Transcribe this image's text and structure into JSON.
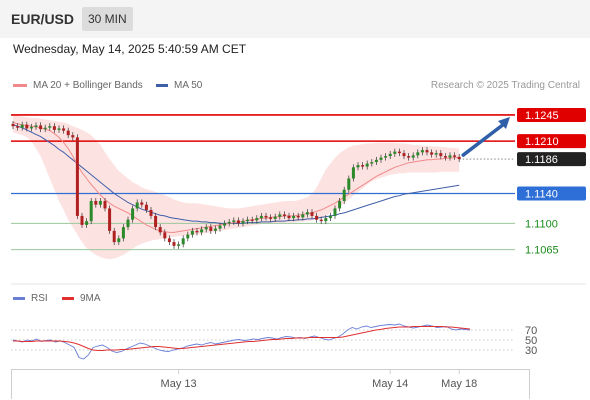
{
  "header": {
    "symbol": "EUR/USD",
    "timeframe": "30 MIN"
  },
  "datetime": "Wednesday, May 14, 2025 5:40:59 AM CET",
  "legend": {
    "ma20_label": "MA 20 + Bollinger Bands",
    "ma50_label": "MA 50",
    "research": "Research © 2025 Trading Central",
    "ma20_color": "#f08a8a",
    "ma50_color": "#3f5fa8"
  },
  "rsi_legend": {
    "rsi_label": "RSI",
    "ma_label": "9MA",
    "rsi_color": "#6a7fd6",
    "ma_color": "#e03030"
  },
  "chart_data": {
    "type": "candlestick",
    "instrument": "EUR/USD",
    "interval": "30 MIN",
    "ylim": [
      1.1035,
      1.1265
    ],
    "x_labels": [
      {
        "label": "May 13",
        "index": 36
      },
      {
        "label": "May 14",
        "index": 82
      },
      {
        "label": "May 18",
        "index": 97
      }
    ],
    "levels": [
      {
        "value": 1.1245,
        "label": "1.1245",
        "kind": "resistance"
      },
      {
        "value": 1.121,
        "label": "1.1210",
        "kind": "resistance"
      },
      {
        "value": 1.1186,
        "label": "1.1186",
        "kind": "last"
      },
      {
        "value": 1.114,
        "label": "1.1140",
        "kind": "pivot"
      },
      {
        "value": 1.11,
        "label": "1.1100",
        "kind": "support"
      },
      {
        "value": 1.1065,
        "label": "1.1065",
        "kind": "support"
      }
    ],
    "close": [
      1.123,
      1.1228,
      1.1232,
      1.1227,
      1.1229,
      1.1231,
      1.1226,
      1.1228,
      1.123,
      1.1225,
      1.1227,
      1.1224,
      1.1218,
      1.1215,
      1.111,
      1.1098,
      1.1103,
      1.113,
      1.1125,
      1.113,
      1.112,
      1.109,
      1.1075,
      1.108,
      1.1095,
      1.1105,
      1.112,
      1.1128,
      1.1125,
      1.1118,
      1.111,
      1.1095,
      1.1088,
      1.108,
      1.1075,
      1.107,
      1.1072,
      1.108,
      1.1085,
      1.109,
      1.1088,
      1.1092,
      1.1095,
      1.109,
      1.1093,
      1.1097,
      1.11,
      1.1102,
      1.1104,
      1.11,
      1.1103,
      1.1105,
      1.1104,
      1.1107,
      1.111,
      1.1108,
      1.1106,
      1.1109,
      1.1112,
      1.111,
      1.1107,
      1.111,
      1.1108,
      1.1112,
      1.1115,
      1.111,
      1.1105,
      1.1103,
      1.1107,
      1.111,
      1.112,
      1.113,
      1.1145,
      1.116,
      1.1175,
      1.1178,
      1.1176,
      1.118,
      1.1182,
      1.1185,
      1.1188,
      1.119,
      1.1193,
      1.1196,
      1.1194,
      1.119,
      1.1188,
      1.1191,
      1.1195,
      1.1198,
      1.1195,
      1.1192,
      1.1194,
      1.119,
      1.1188,
      1.1191,
      1.1189,
      1.1186
    ],
    "ma20": [
      1.1235,
      1.1233,
      1.1232,
      1.1231,
      1.123,
      1.1229,
      1.1228,
      1.1226,
      1.1224,
      1.122,
      1.1215,
      1.1208,
      1.12,
      1.119,
      1.1178,
      1.1168,
      1.116,
      1.1152,
      1.1145,
      1.1138,
      1.1132,
      1.1127,
      1.1123,
      1.112,
      1.1117,
      1.1114,
      1.111,
      1.1106,
      1.1102,
      1.1098,
      1.1095,
      1.1092,
      1.109,
      1.1089,
      1.1088,
      1.1088,
      1.1089,
      1.109,
      1.1091,
      1.1092,
      1.1093,
      1.1094,
      1.1095,
      1.1096,
      1.1097,
      1.1098,
      1.1099,
      1.11,
      1.1101,
      1.1102,
      1.1103,
      1.1104,
      1.1105,
      1.1106,
      1.1107,
      1.1107,
      1.1108,
      1.1109,
      1.1109,
      1.111,
      1.111,
      1.111,
      1.1111,
      1.1112,
      1.1113,
      1.1114,
      1.1116,
      1.1118,
      1.1121,
      1.1124,
      1.1127,
      1.1131,
      1.1135,
      1.1139,
      1.1143,
      1.1147,
      1.1151,
      1.1155,
      1.1159,
      1.1163,
      1.1166,
      1.1169,
      1.1172,
      1.1175,
      1.1177,
      1.1179,
      1.1181,
      1.1182,
      1.1183,
      1.1184,
      1.1185,
      1.1185,
      1.1186,
      1.1186,
      1.1187,
      1.1187,
      1.1188,
      1.1188
    ],
    "bb_upper": [
      1.1245,
      1.1244,
      1.1243,
      1.1242,
      1.1241,
      1.1241,
      1.124,
      1.1239,
      1.1238,
      1.1237,
      1.1236,
      1.1235,
      1.1233,
      1.123,
      1.1228,
      1.1225,
      1.1222,
      1.1218,
      1.1212,
      1.1205,
      1.1195,
      1.1186,
      1.1178,
      1.117,
      1.1165,
      1.116,
      1.1155,
      1.1152,
      1.1148,
      1.1146,
      1.1144,
      1.1142,
      1.114,
      1.1138,
      1.1135,
      1.1132,
      1.113,
      1.1128,
      1.1127,
      1.1127,
      1.1127,
      1.1126,
      1.1125,
      1.1124,
      1.1123,
      1.1122,
      1.1121,
      1.112,
      1.112,
      1.112,
      1.1121,
      1.1122,
      1.1123,
      1.1124,
      1.1125,
      1.1126,
      1.1127,
      1.1128,
      1.1129,
      1.113,
      1.113,
      1.113,
      1.1131,
      1.1133,
      1.1135,
      1.114,
      1.1148,
      1.116,
      1.1172,
      1.118,
      1.1188,
      1.1194,
      1.1198,
      1.1202,
      1.1204,
      1.1205,
      1.1206,
      1.1207,
      1.1207,
      1.1208,
      1.1208,
      1.1208,
      1.1208,
      1.1208,
      1.1207,
      1.1207,
      1.1206,
      1.1205,
      1.1205,
      1.1204,
      1.1204,
      1.1203,
      1.1203,
      1.1202,
      1.1202,
      1.1201,
      1.1201,
      1.12
    ],
    "bb_lower": [
      1.1222,
      1.122,
      1.1218,
      1.1215,
      1.121,
      1.12,
      1.119,
      1.1175,
      1.116,
      1.1145,
      1.113,
      1.1118,
      1.1105,
      1.1095,
      1.1085,
      1.1075,
      1.1067,
      1.1062,
      1.1058,
      1.1055,
      1.1053,
      1.1052,
      1.1053,
      1.1055,
      1.1058,
      1.1062,
      1.1066,
      1.107,
      1.1073,
      1.1075,
      1.1077,
      1.1078,
      1.1079,
      1.108,
      1.1081,
      1.1082,
      1.1083,
      1.1083,
      1.1084,
      1.1084,
      1.1085,
      1.1086,
      1.1087,
      1.1088,
      1.1089,
      1.109,
      1.1091,
      1.1092,
      1.1093,
      1.1094,
      1.1095,
      1.1096,
      1.1097,
      1.1098,
      1.1099,
      1.1099,
      1.11,
      1.11,
      1.11,
      1.1101,
      1.1101,
      1.1101,
      1.1102,
      1.1102,
      1.1103,
      1.1104,
      1.1105,
      1.1107,
      1.111,
      1.1114,
      1.1118,
      1.1122,
      1.1127,
      1.1132,
      1.1137,
      1.1142,
      1.1147,
      1.1152,
      1.1156,
      1.1159,
      1.1161,
      1.1163,
      1.1165,
      1.1166,
      1.1167,
      1.1167,
      1.1168,
      1.1168,
      1.1168,
      1.1168,
      1.1168,
      1.1168,
      1.1168,
      1.1169,
      1.1169,
      1.1169,
      1.1169,
      1.1169
    ],
    "ma50": [
      1.1232,
      1.123,
      1.1228,
      1.1225,
      1.1222,
      1.1219,
      1.1216,
      1.1212,
      1.1208,
      1.1204,
      1.1199,
      1.1195,
      1.119,
      1.1185,
      1.118,
      1.1175,
      1.117,
      1.1165,
      1.116,
      1.1155,
      1.115,
      1.1145,
      1.114,
      1.1136,
      1.1132,
      1.1128,
      1.1125,
      1.1122,
      1.1119,
      1.1117,
      1.1115,
      1.1113,
      1.1111,
      1.111,
      1.1108,
      1.1107,
      1.1106,
      1.1105,
      1.1104,
      1.1103,
      1.1103,
      1.1102,
      1.1102,
      1.1101,
      1.1101,
      1.11,
      1.11,
      1.11,
      1.11,
      1.11,
      1.11,
      1.1101,
      1.1101,
      1.1101,
      1.1102,
      1.1102,
      1.1102,
      1.1103,
      1.1103,
      1.1103,
      1.1104,
      1.1104,
      1.1105,
      1.1105,
      1.1106,
      1.1106,
      1.1107,
      1.1108,
      1.1109,
      1.111,
      1.1111,
      1.1113,
      1.1114,
      1.1116,
      1.1118,
      1.112,
      1.1122,
      1.1124,
      1.1126,
      1.1128,
      1.113,
      1.1132,
      1.1134,
      1.1136,
      1.1137,
      1.1139,
      1.114,
      1.1141,
      1.1142,
      1.1143,
      1.1144,
      1.1145,
      1.1146,
      1.1147,
      1.1148,
      1.1149,
      1.115,
      1.1151
    ],
    "forecast_target": 1.1245,
    "rsi": {
      "levels": [
        70,
        50,
        30
      ],
      "ylim": [
        0,
        100
      ],
      "rsi": [
        50,
        48,
        46,
        50,
        48,
        52,
        47,
        49,
        50,
        46,
        48,
        45,
        40,
        35,
        15,
        12,
        20,
        35,
        38,
        40,
        35,
        28,
        25,
        27,
        32,
        36,
        40,
        44,
        42,
        38,
        34,
        30,
        28,
        27,
        30,
        32,
        34,
        38,
        40,
        42,
        40,
        43,
        45,
        42,
        44,
        46,
        48,
        50,
        51,
        49,
        50,
        52,
        51,
        53,
        55,
        54,
        52,
        55,
        57,
        56,
        54,
        55,
        53,
        56,
        58,
        55,
        52,
        50,
        53,
        56,
        62,
        70,
        75,
        72,
        76,
        78,
        75,
        77,
        79,
        80,
        81,
        80,
        82,
        78,
        76,
        74,
        76,
        78,
        80,
        78,
        75,
        76,
        77,
        72,
        70,
        72,
        71,
        70
      ],
      "ma9": [
        48,
        48,
        47,
        47,
        47,
        48,
        48,
        48,
        48,
        48,
        48,
        47,
        46,
        44,
        41,
        37,
        33,
        30,
        29,
        29,
        30,
        30,
        30,
        31,
        31,
        32,
        33,
        34,
        35,
        36,
        37,
        37,
        36,
        35,
        34,
        33,
        33,
        34,
        35,
        36,
        37,
        38,
        39,
        40,
        41,
        42,
        43,
        44,
        45,
        46,
        47,
        47,
        48,
        49,
        50,
        51,
        51,
        52,
        53,
        53,
        54,
        54,
        54,
        55,
        55,
        55,
        55,
        55,
        55,
        55,
        56,
        58,
        60,
        62,
        64,
        66,
        68,
        70,
        71,
        73,
        74,
        75,
        76,
        76,
        76,
        77,
        77,
        77,
        77,
        77,
        77,
        77,
        76,
        76,
        75,
        74,
        73,
        72
      ]
    }
  }
}
